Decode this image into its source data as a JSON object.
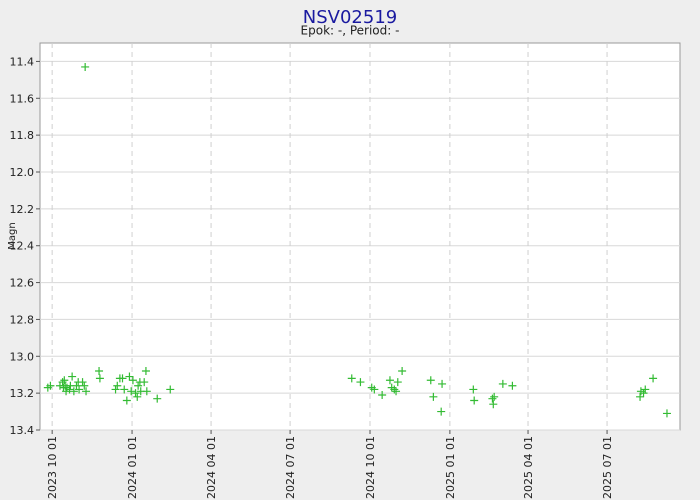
{
  "chart_data": {
    "type": "scatter",
    "title": "NSV02519",
    "subtitle": "Epok: -, Period: -",
    "y_label": "Magn",
    "color": "#33bb33",
    "grid": true,
    "xlim": [
      "2023-09-17",
      "2025-09-23"
    ],
    "xticks": [
      {
        "value": "2023-10-01",
        "label": "2023 10 01"
      },
      {
        "value": "2024-01-01",
        "label": "2024 01 01"
      },
      {
        "value": "2024-04-01",
        "label": "2024 04 01"
      },
      {
        "value": "2024-07-01",
        "label": "2024 07 01"
      },
      {
        "value": "2024-10-01",
        "label": "2024 10 01"
      },
      {
        "value": "2025-01-01",
        "label": "2025 01 01"
      },
      {
        "value": "2025-04-01",
        "label": "2025 04 01"
      },
      {
        "value": "2025-07-01",
        "label": "2025 07 01"
      }
    ],
    "ylim": [
      13.4,
      11.3
    ],
    "yticks": [
      11.4,
      11.6,
      11.8,
      {
        "value": 12.0,
        "label": "12.0"
      },
      12.2,
      12.4,
      12.6,
      12.8,
      {
        "value": 13.0,
        "label": "13.0"
      },
      13.2,
      13.4
    ],
    "x": [
      "2023-09-26",
      "2023-09-29",
      "2023-10-10",
      "2023-10-13",
      "2023-10-14",
      "2023-10-15",
      "2023-10-16",
      "2023-10-17",
      "2023-10-18",
      "2023-10-21",
      "2023-10-22",
      "2023-10-24",
      "2023-10-26",
      "2023-10-29",
      "2023-10-31",
      "2023-11-01",
      "2023-11-05",
      "2023-11-07",
      "2023-11-09",
      "2023-11-08",
      "2023-11-24",
      "2023-11-25",
      "2023-12-13",
      "2023-12-15",
      "2023-12-18",
      "2023-12-21",
      "2023-12-23",
      "2023-12-26",
      "2023-12-29",
      "2023-12-31",
      "2024-01-02",
      "2024-01-05",
      "2024-01-07",
      "2024-01-08",
      "2024-01-10",
      "2024-01-11",
      "2024-01-15",
      "2024-01-17",
      "2024-01-18",
      "2024-01-30",
      "2024-02-14",
      "2024-09-10",
      "2024-09-20",
      "2024-10-03",
      "2024-10-06",
      "2024-10-15",
      "2024-10-24",
      "2024-10-26",
      "2024-10-29",
      "2024-10-31",
      "2024-11-02",
      "2024-11-07",
      "2024-12-10",
      "2024-12-13",
      "2024-12-22",
      "2024-12-23",
      "2025-01-28",
      "2025-01-29",
      "2025-02-19",
      "2025-02-20",
      "2025-02-21",
      "2025-03-03",
      "2025-03-14",
      "2025-08-08",
      "2025-08-09",
      "2025-08-12",
      "2025-08-14",
      "2025-08-23",
      "2025-09-08"
    ],
    "values": [
      13.17,
      13.16,
      13.16,
      13.14,
      13.17,
      13.13,
      13.16,
      13.19,
      13.17,
      13.18,
      13.16,
      13.11,
      13.19,
      13.16,
      13.14,
      13.18,
      13.14,
      13.16,
      13.19,
      11.43,
      13.08,
      13.12,
      13.18,
      13.16,
      13.12,
      13.12,
      13.18,
      13.24,
      13.11,
      13.19,
      13.13,
      13.2,
      13.22,
      13.16,
      13.14,
      13.19,
      13.14,
      13.08,
      13.19,
      13.23,
      13.18,
      13.12,
      13.14,
      13.17,
      13.18,
      13.21,
      13.13,
      13.17,
      13.18,
      13.19,
      13.14,
      13.08,
      13.13,
      13.22,
      13.3,
      13.15,
      13.18,
      13.24,
      13.23,
      13.26,
      13.22,
      13.15,
      13.16,
      13.22,
      13.19,
      13.2,
      13.18,
      13.12,
      13.31
    ]
  }
}
